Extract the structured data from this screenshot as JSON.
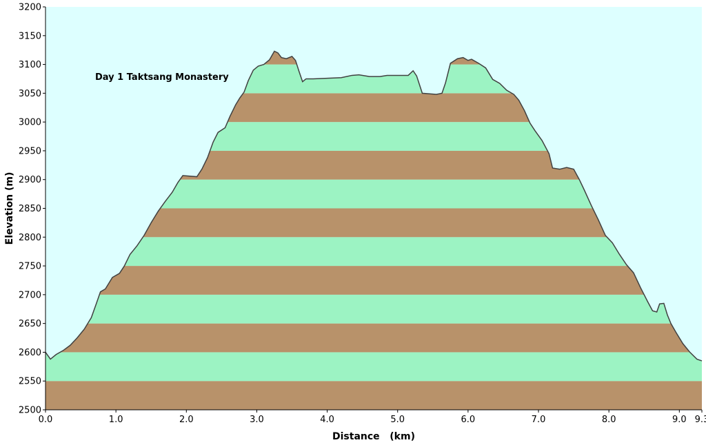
{
  "chart_data": {
    "type": "area",
    "annotation": "Day 1 Taktsang Monastery",
    "xlabel": "Distance   (km)",
    "ylabel": "Elevation (m)",
    "xlim": [
      0,
      9.32
    ],
    "ylim": [
      2500,
      3200
    ],
    "x_ticks": [
      {
        "value": 0,
        "label": "0.0"
      },
      {
        "value": 1,
        "label": "1.0"
      },
      {
        "value": 2,
        "label": "2.0"
      },
      {
        "value": 3,
        "label": "3.0"
      },
      {
        "value": 4,
        "label": "4.0"
      },
      {
        "value": 5,
        "label": "5.0"
      },
      {
        "value": 6,
        "label": "6.0"
      },
      {
        "value": 7,
        "label": "7.0"
      },
      {
        "value": 8,
        "label": "8.0"
      },
      {
        "value": 9,
        "label": "9.0"
      },
      {
        "value": 9.32,
        "label": "9.3"
      }
    ],
    "y_ticks": [
      {
        "value": 2500,
        "label": "2500"
      },
      {
        "value": 2550,
        "label": "2550"
      },
      {
        "value": 2600,
        "label": "2600"
      },
      {
        "value": 2650,
        "label": "2650"
      },
      {
        "value": 2700,
        "label": "2700"
      },
      {
        "value": 2750,
        "label": "2750"
      },
      {
        "value": 2800,
        "label": "2800"
      },
      {
        "value": 2850,
        "label": "2850"
      },
      {
        "value": 2900,
        "label": "2900"
      },
      {
        "value": 2950,
        "label": "2950"
      },
      {
        "value": 3000,
        "label": "3000"
      },
      {
        "value": 3050,
        "label": "3050"
      },
      {
        "value": 3100,
        "label": "3100"
      },
      {
        "value": 3150,
        "label": "3150"
      },
      {
        "value": 3200,
        "label": "3200"
      }
    ],
    "band_step": 50,
    "grid": false,
    "series": [
      {
        "x": [
          0.0,
          0.07,
          0.15,
          0.25,
          0.35,
          0.45,
          0.55,
          0.65,
          0.72,
          0.78,
          0.85,
          0.95,
          1.05,
          1.12,
          1.2,
          1.3,
          1.4,
          1.5,
          1.6,
          1.7,
          1.8,
          1.88,
          1.95,
          2.05,
          2.15,
          2.22,
          2.3,
          2.38,
          2.45,
          2.55,
          2.62,
          2.7,
          2.76,
          2.82,
          2.88,
          2.95,
          3.02,
          3.1,
          3.18,
          3.25,
          3.3,
          3.35,
          3.42,
          3.5,
          3.55,
          3.6,
          3.65,
          3.7,
          3.8,
          4.0,
          4.2,
          4.35,
          4.45,
          4.6,
          4.75,
          4.85,
          5.0,
          5.15,
          5.22,
          5.27,
          5.35,
          5.55,
          5.63,
          5.68,
          5.75,
          5.85,
          5.93,
          6.0,
          6.05,
          6.15,
          6.25,
          6.35,
          6.45,
          6.55,
          6.65,
          6.72,
          6.8,
          6.88,
          6.95,
          7.05,
          7.15,
          7.2,
          7.3,
          7.4,
          7.5,
          7.58,
          7.65,
          7.75,
          7.85,
          7.95,
          8.05,
          8.15,
          8.25,
          8.35,
          8.45,
          8.55,
          8.62,
          8.68,
          8.72,
          8.78,
          8.83,
          8.88,
          8.95,
          9.05,
          9.15,
          9.25,
          9.32
        ],
        "y": [
          2600,
          2588,
          2596,
          2603,
          2612,
          2625,
          2640,
          2660,
          2684,
          2705,
          2710,
          2730,
          2737,
          2750,
          2770,
          2785,
          2803,
          2825,
          2845,
          2862,
          2878,
          2895,
          2907,
          2906,
          2905,
          2918,
          2938,
          2965,
          2982,
          2990,
          3010,
          3030,
          3042,
          3052,
          3072,
          3090,
          3097,
          3100,
          3108,
          3123,
          3120,
          3112,
          3110,
          3114,
          3107,
          3088,
          3070,
          3075,
          3075,
          3076,
          3077,
          3081,
          3082,
          3079,
          3079,
          3081,
          3081,
          3081,
          3089,
          3080,
          3050,
          3048,
          3050,
          3068,
          3102,
          3110,
          3112,
          3107,
          3109,
          3102,
          3094,
          3074,
          3067,
          3055,
          3048,
          3038,
          3020,
          2998,
          2985,
          2968,
          2945,
          2920,
          2918,
          2921,
          2918,
          2900,
          2882,
          2855,
          2830,
          2803,
          2790,
          2770,
          2752,
          2738,
          2712,
          2688,
          2672,
          2670,
          2684,
          2685,
          2665,
          2650,
          2635,
          2615,
          2600,
          2588,
          2585
        ]
      }
    ],
    "colors": {
      "plot_background": "#DDFFFF",
      "band_light": "#9CF3C3",
      "band_dark": "#B8926A",
      "profile_line": "#404040",
      "axis": "#000000"
    }
  }
}
